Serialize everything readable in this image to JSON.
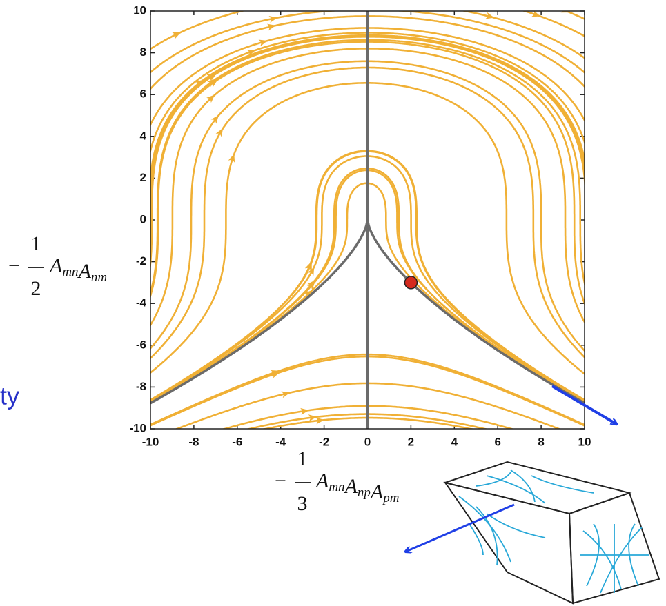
{
  "chart_data": {
    "type": "phase-portrait",
    "xlim": [
      -10,
      10
    ],
    "ylim": [
      -10,
      10
    ],
    "xticks": [
      -10,
      -8,
      -6,
      -4,
      -2,
      0,
      2,
      4,
      6,
      8,
      10
    ],
    "yticks": [
      -10,
      -8,
      -6,
      -4,
      -2,
      0,
      2,
      4,
      6,
      8,
      10
    ],
    "xlabel": {
      "sign": "−",
      "numerator": "1",
      "denominator": "3",
      "terms": [
        [
          "A",
          "mn"
        ],
        [
          "A",
          "np"
        ],
        [
          "A",
          "pm"
        ]
      ]
    },
    "ylabel": {
      "sign": "−",
      "numerator": "1",
      "denominator": "2",
      "terms": [
        [
          "A",
          "mn"
        ],
        [
          "A",
          "nm"
        ]
      ]
    },
    "points": [
      {
        "x": 2,
        "y": -3,
        "color": "#d42a1e"
      }
    ],
    "streamline_color": "#f0b035",
    "separatrix_color": "#6b6b6b"
  },
  "annotations": [
    "ty"
  ]
}
